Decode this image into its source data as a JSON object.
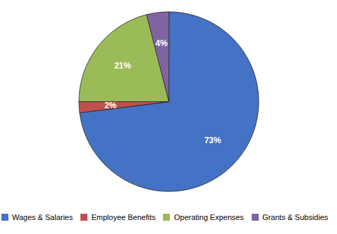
{
  "chart_data": {
    "type": "pie",
    "categories": [
      "Wages & Salaries",
      "Employee Benefits",
      "Operating Expenses",
      "Grants & Subsidies"
    ],
    "values": [
      73,
      2,
      21,
      4
    ],
    "value_labels": [
      "73%",
      "2%",
      "21%",
      "4%"
    ],
    "colors": [
      "#4472C4",
      "#C0504D",
      "#9BBB59",
      "#8064A2"
    ],
    "data_labels": true,
    "legend": "bottom"
  }
}
